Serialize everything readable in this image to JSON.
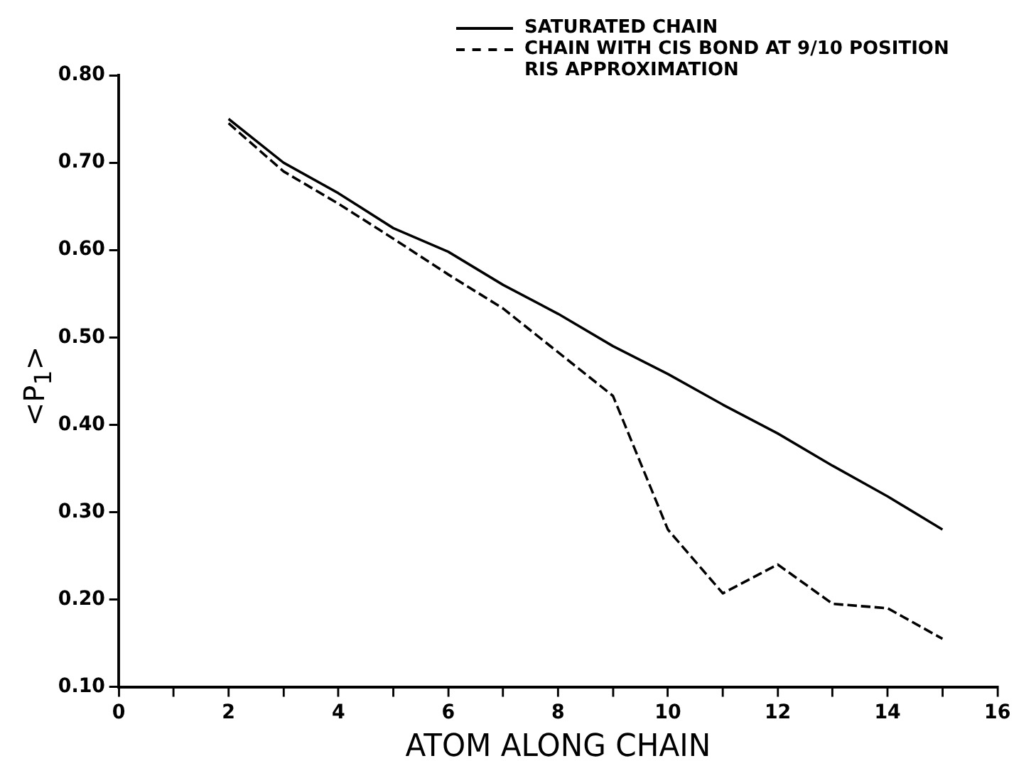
{
  "chart_data": {
    "type": "line",
    "xlabel": "ATOM ALONG CHAIN",
    "ylabel": "<P$_{1}$>",
    "x": [
      2,
      3,
      4,
      5,
      6,
      7,
      8,
      9,
      10,
      11,
      12,
      13,
      14,
      15
    ],
    "series": [
      {
        "name": "SATURATED CHAIN",
        "color": "#000000",
        "line_style": "solid",
        "values": [
          0.75,
          0.7,
          0.665,
          0.625,
          0.598,
          0.56,
          0.527,
          0.49,
          0.458,
          0.423,
          0.39,
          0.353,
          0.318,
          0.28
        ]
      },
      {
        "name": "CHAIN WITH CIS BOND AT 9/10 POSITION RIS APPROXIMATION",
        "color": "#000000",
        "line_style": "dashed",
        "values": [
          0.745,
          0.69,
          0.653,
          0.613,
          0.572,
          0.533,
          0.483,
          0.433,
          0.28,
          0.207,
          0.24,
          0.195,
          0.19,
          0.155
        ]
      }
    ],
    "xlim": [
      0,
      16
    ],
    "xticks": [
      0,
      {
        "value": 1,
        "label": null
      },
      2,
      {
        "value": 3,
        "label": null
      },
      4,
      {
        "value": 5,
        "label": null
      },
      6,
      {
        "value": 7,
        "label": null
      },
      8,
      {
        "value": 9,
        "label": null
      },
      10,
      {
        "value": 11,
        "label": null
      },
      12,
      {
        "value": 13,
        "label": null
      },
      14,
      {
        "value": 15,
        "label": null
      },
      16
    ],
    "ylim": [
      0.1,
      0.8
    ],
    "yticks": [
      {
        "value": 0.1,
        "label": "0.10"
      },
      {
        "value": 0.2,
        "label": "0.20"
      },
      {
        "value": 0.3,
        "label": "0.30"
      },
      {
        "value": 0.4,
        "label": "0.40"
      },
      {
        "value": 0.5,
        "label": "0.50"
      },
      {
        "value": 0.6,
        "label": "0.60"
      },
      {
        "value": 0.7,
        "label": "0.70"
      },
      {
        "value": 0.8,
        "label": "0.80"
      }
    ],
    "grid": false,
    "legend": "top right",
    "marker": "none"
  }
}
